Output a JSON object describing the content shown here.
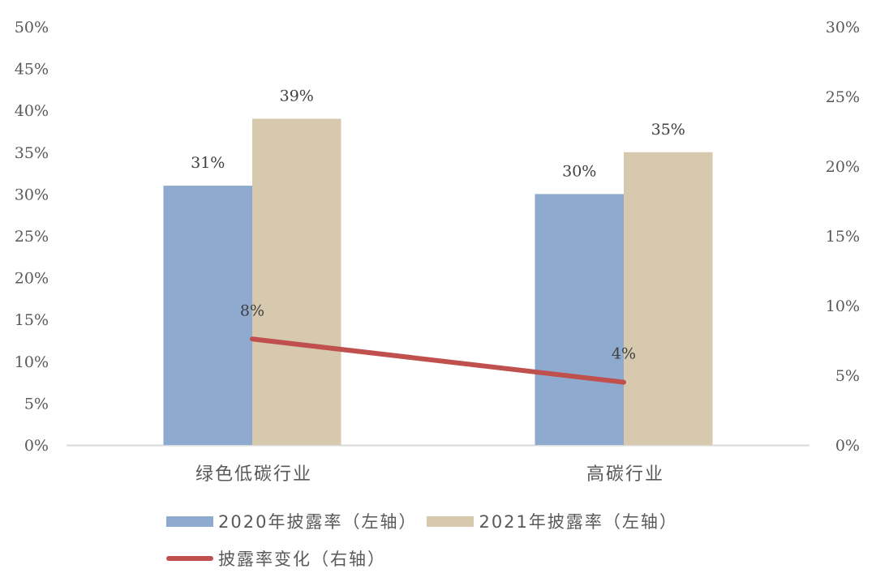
{
  "chart_data": {
    "type": "bar",
    "title": "",
    "xlabel": "",
    "ylabel": "",
    "categories": [
      "绿色低碳行业",
      "高碳行业"
    ],
    "series": [
      {
        "name": "2020年披露率（左轴）",
        "type": "bar",
        "axis": "left",
        "color": "#8FAACF",
        "values": [
          31,
          30
        ],
        "labels": [
          "31%",
          "30%"
        ]
      },
      {
        "name": "2021年披露率（左轴）",
        "type": "bar",
        "axis": "left",
        "color": "#D7C9AD",
        "values": [
          39,
          35
        ],
        "labels": [
          "39%",
          "35%"
        ]
      },
      {
        "name": "披露率变化（右轴）",
        "type": "line",
        "axis": "right",
        "color": "#C0504D",
        "values": [
          8,
          4
        ],
        "labels": [
          "8%",
          "4%"
        ]
      }
    ],
    "ylim_left": [
      0,
      50
    ],
    "ylim_right": [
      0,
      30
    ],
    "yticks_left": [
      "0%",
      "5%",
      "10%",
      "15%",
      "20%",
      "25%",
      "30%",
      "35%",
      "40%",
      "45%",
      "50%"
    ],
    "yticks_right": [
      "0%",
      "5%",
      "10%",
      "15%",
      "20%",
      "25%",
      "30%"
    ],
    "grid": false,
    "legend_position": "bottom"
  },
  "legend": {
    "items": [
      {
        "label": "2020年披露率（左轴）",
        "color": "#8FAACF",
        "kind": "bar"
      },
      {
        "label": "2021年披露率（左轴）",
        "color": "#D7C9AD",
        "kind": "bar"
      },
      {
        "label": "披露率变化（右轴）",
        "color": "#C0504D",
        "kind": "line"
      }
    ]
  }
}
